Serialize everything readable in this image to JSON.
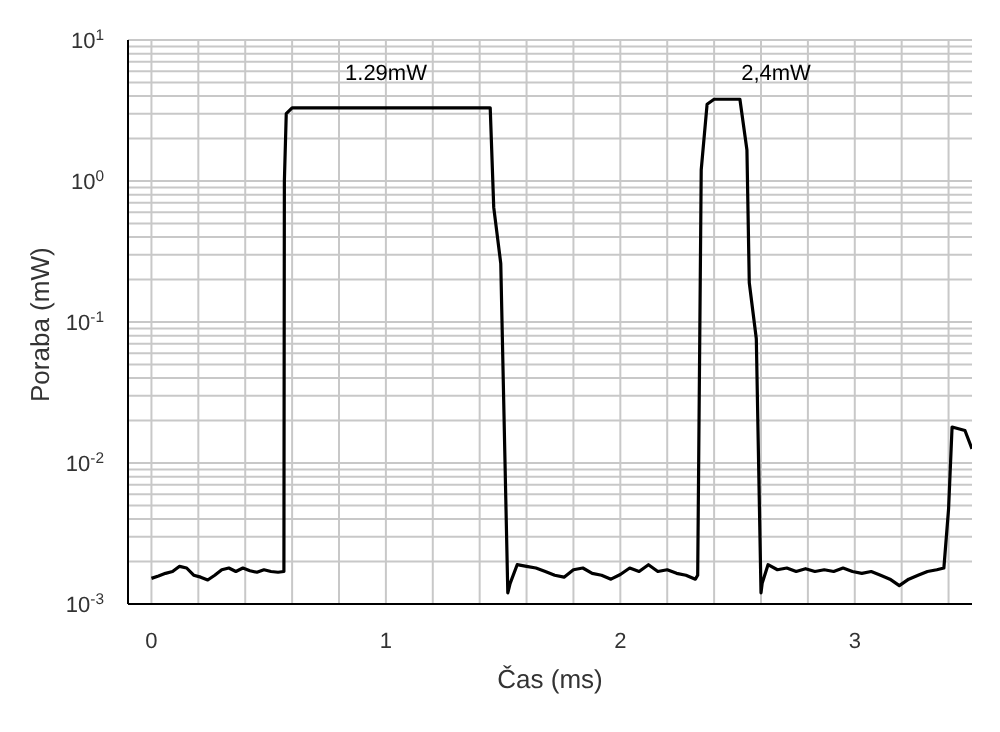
{
  "chart_data": {
    "type": "line",
    "xlabel": "Čas (ms)",
    "ylabel": "Poraba (mW)",
    "x": [
      0,
      0.03,
      0.06,
      0.09,
      0.12,
      0.15,
      0.18,
      0.21,
      0.24,
      0.27,
      0.3,
      0.33,
      0.36,
      0.39,
      0.42,
      0.45,
      0.48,
      0.51,
      0.54,
      0.565,
      0.567,
      0.575,
      0.6,
      0.8,
      1.0,
      1.2,
      1.445,
      1.46,
      1.49,
      1.52,
      1.53,
      1.56,
      1.6,
      1.64,
      1.68,
      1.72,
      1.76,
      1.8,
      1.84,
      1.88,
      1.92,
      1.96,
      2.0,
      2.04,
      2.08,
      2.12,
      2.16,
      2.2,
      2.24,
      2.28,
      2.32,
      2.33,
      2.345,
      2.37,
      2.4,
      2.45,
      2.51,
      2.54,
      2.55,
      2.58,
      2.6,
      2.605,
      2.63,
      2.67,
      2.71,
      2.75,
      2.79,
      2.83,
      2.87,
      2.91,
      2.95,
      2.99,
      3.03,
      3.07,
      3.11,
      3.15,
      3.19,
      3.23,
      3.27,
      3.31,
      3.35,
      3.38,
      3.4,
      3.415,
      3.47,
      3.5
    ],
    "series": [
      {
        "color": "#000000",
        "values": [
          0.00152,
          0.00158,
          0.00165,
          0.0017,
          0.00185,
          0.0018,
          0.0016,
          0.00155,
          0.00148,
          0.0016,
          0.00175,
          0.0018,
          0.0017,
          0.0018,
          0.00172,
          0.00168,
          0.00175,
          0.0017,
          0.00168,
          0.0017,
          1.0,
          3.0,
          3.3,
          3.3,
          3.3,
          3.3,
          3.3,
          0.65,
          0.26,
          0.0012,
          0.0014,
          0.0019,
          0.00185,
          0.0018,
          0.0017,
          0.0016,
          0.00155,
          0.00175,
          0.0018,
          0.00165,
          0.0016,
          0.0015,
          0.00162,
          0.0018,
          0.0017,
          0.0019,
          0.0017,
          0.00175,
          0.00165,
          0.0016,
          0.0015,
          0.0016,
          1.2,
          3.5,
          3.8,
          3.8,
          3.8,
          1.66,
          0.19,
          0.076,
          0.0012,
          0.0014,
          0.0019,
          0.00175,
          0.0018,
          0.0017,
          0.00178,
          0.0017,
          0.00175,
          0.0017,
          0.0018,
          0.0017,
          0.00165,
          0.0017,
          0.0016,
          0.0015,
          0.00135,
          0.0015,
          0.0016,
          0.0017,
          0.00175,
          0.0018,
          0.0047,
          0.018,
          0.017,
          0.0126
        ]
      }
    ],
    "xlim": [
      -0.1,
      3.5
    ],
    "xticks": [
      0,
      {
        "value": 0.2,
        "label": null
      },
      {
        "value": 0.4,
        "label": null
      },
      {
        "value": 0.6,
        "label": null
      },
      {
        "value": 0.8,
        "label": null
      },
      1,
      {
        "value": 1.2,
        "label": null
      },
      {
        "value": 1.4,
        "label": null
      },
      {
        "value": 1.6,
        "label": null
      },
      {
        "value": 1.8,
        "label": null
      },
      2,
      {
        "value": 2.2,
        "label": null
      },
      {
        "value": 2.4,
        "label": null
      },
      {
        "value": 2.6,
        "label": null
      },
      {
        "value": 2.8,
        "label": null
      },
      3,
      {
        "value": 3.2,
        "label": null
      },
      {
        "value": 3.4,
        "label": null
      }
    ],
    "ylim": [
      0.001,
      10
    ],
    "log": true,
    "yticks": [
      {
        "value": 0.001,
        "label": "10$^{-3}$"
      },
      {
        "value": 0.002,
        "label": null
      },
      {
        "value": 0.003,
        "label": null
      },
      {
        "value": 0.004,
        "label": null
      },
      {
        "value": 0.005,
        "label": null
      },
      {
        "value": 0.006,
        "label": null
      },
      {
        "value": 0.007,
        "label": null
      },
      {
        "value": 0.008,
        "label": null
      },
      {
        "value": 0.009,
        "label": null
      },
      {
        "value": 0.01,
        "label": "10$^{-2}$"
      },
      {
        "value": 0.02,
        "label": null
      },
      {
        "value": 0.03,
        "label": null
      },
      {
        "value": 0.04,
        "label": null
      },
      {
        "value": 0.05,
        "label": null
      },
      {
        "value": 0.06,
        "label": null
      },
      {
        "value": 0.07,
        "label": null
      },
      {
        "value": 0.08,
        "label": null
      },
      {
        "value": 0.09,
        "label": null
      },
      {
        "value": 0.1,
        "label": "10$^{-1}$"
      },
      {
        "value": 0.2,
        "label": null
      },
      {
        "value": 0.3,
        "label": null
      },
      {
        "value": 0.4,
        "label": null
      },
      {
        "value": 0.5,
        "label": null
      },
      {
        "value": 0.6,
        "label": null
      },
      {
        "value": 0.7,
        "label": null
      },
      {
        "value": 0.8,
        "label": null
      },
      {
        "value": 0.9,
        "label": null
      },
      {
        "value": 1,
        "label": "10$^{0}$"
      },
      {
        "value": 2,
        "label": null
      },
      {
        "value": 3,
        "label": null
      },
      {
        "value": 4,
        "label": null
      },
      {
        "value": 5,
        "label": null
      },
      {
        "value": 6,
        "label": null
      },
      {
        "value": 7,
        "label": null
      },
      {
        "value": 8,
        "label": null
      },
      {
        "value": 9,
        "label": null
      },
      {
        "value": 10,
        "label": "10$^{1}$"
      }
    ],
    "grid": true,
    "marker": "none",
    "line_style": "solid",
    "legend": false,
    "annotations": [
      "1.29mW",
      "2,4mW"
    ]
  }
}
